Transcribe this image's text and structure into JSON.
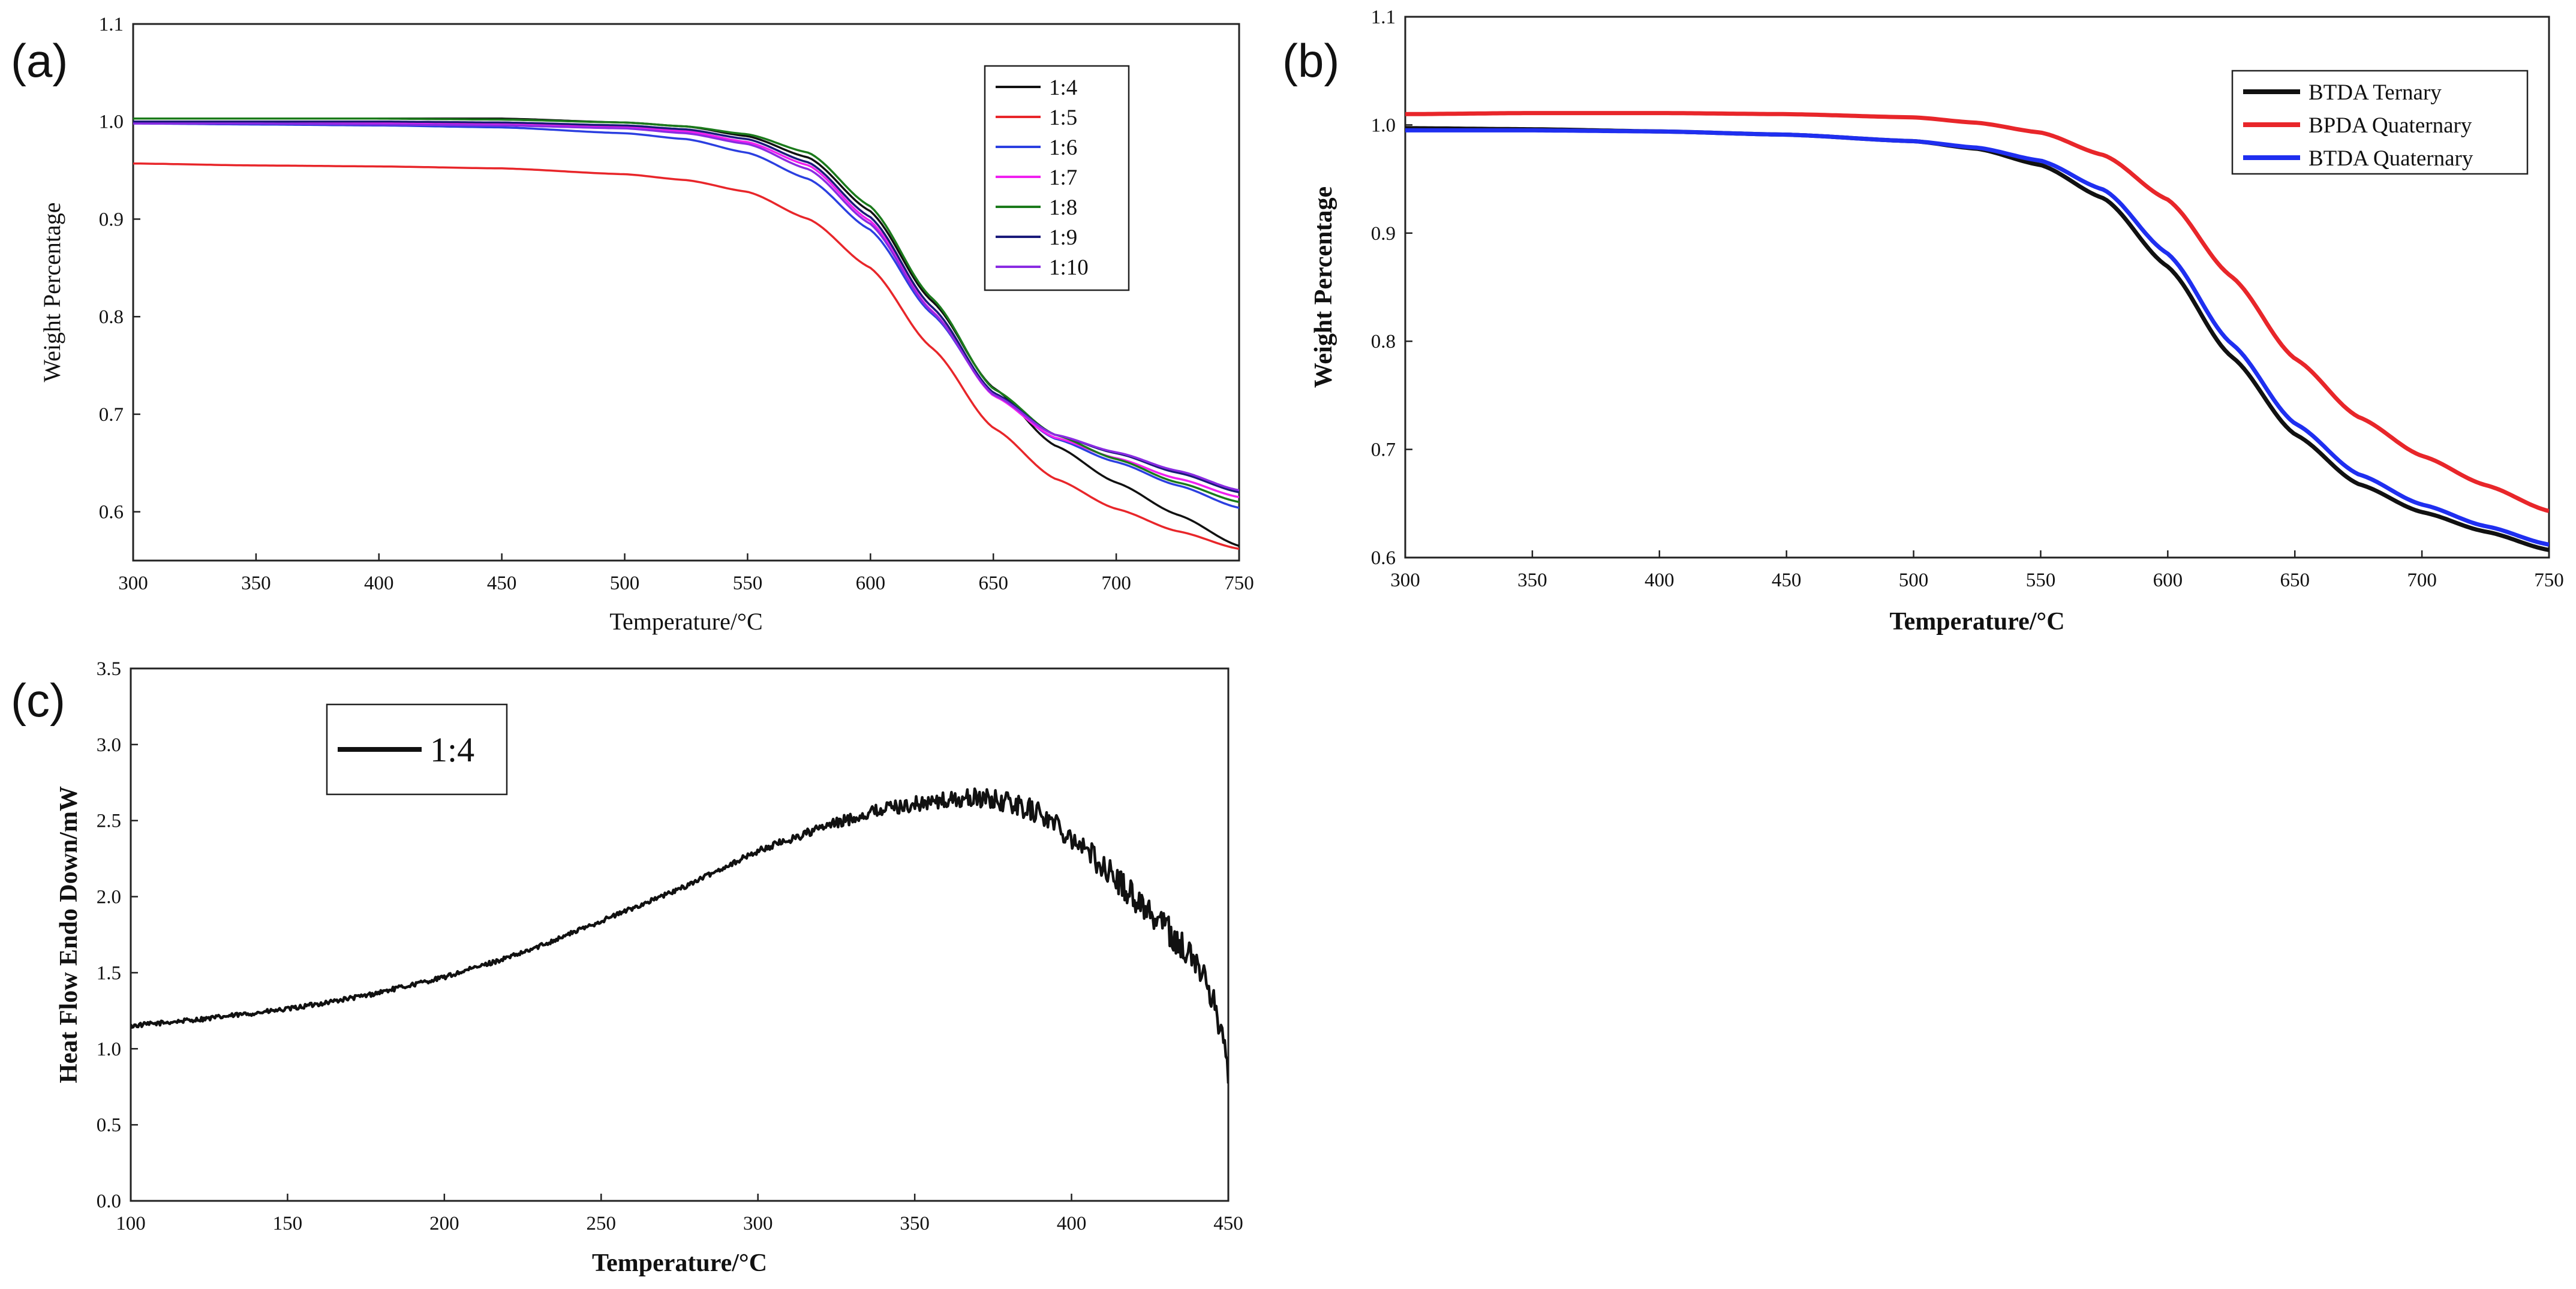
{
  "chart_data": [
    {
      "panel": "(a)",
      "type": "line",
      "title": "",
      "xlabel": "Temperature/°C",
      "ylabel": "Weight Percentage",
      "xlim": [
        300,
        750
      ],
      "ylim": [
        0.55,
        1.1
      ],
      "xticks": [
        300,
        350,
        400,
        450,
        500,
        550,
        600,
        650,
        700,
        750
      ],
      "yticks": [
        0.6,
        0.7,
        0.8,
        0.9,
        1.0,
        1.1
      ],
      "ytick_labels": [
        "0.6",
        "0.7",
        "0.8",
        "0.9",
        "1.0",
        "1.1"
      ],
      "legend": "top-right",
      "series": [
        {
          "name": "1:4",
          "color": "#111111",
          "x": [
            300,
            350,
            400,
            450,
            500,
            525,
            550,
            575,
            600,
            625,
            650,
            675,
            700,
            725,
            750
          ],
          "y": [
            1.003,
            1.003,
            1.003,
            1.003,
            0.999,
            0.995,
            0.985,
            0.963,
            0.908,
            0.816,
            0.727,
            0.668,
            0.63,
            0.597,
            0.565
          ]
        },
        {
          "name": "1:5",
          "color": "#e8262a",
          "x": [
            300,
            350,
            400,
            450,
            500,
            525,
            550,
            575,
            600,
            625,
            650,
            675,
            700,
            725,
            750
          ],
          "y": [
            0.957,
            0.955,
            0.954,
            0.952,
            0.946,
            0.94,
            0.928,
            0.9,
            0.85,
            0.768,
            0.686,
            0.634,
            0.603,
            0.58,
            0.562
          ]
        },
        {
          "name": "1:6",
          "color": "#2b3fe0",
          "x": [
            300,
            350,
            400,
            450,
            500,
            525,
            550,
            575,
            600,
            625,
            650,
            675,
            700,
            725,
            750
          ],
          "y": [
            0.998,
            0.997,
            0.996,
            0.994,
            0.988,
            0.982,
            0.968,
            0.941,
            0.889,
            0.803,
            0.721,
            0.675,
            0.651,
            0.627,
            0.604
          ]
        },
        {
          "name": "1:7",
          "color": "#f020f0",
          "x": [
            300,
            350,
            400,
            450,
            500,
            525,
            550,
            575,
            600,
            625,
            650,
            675,
            700,
            725,
            750
          ],
          "y": [
            1.0,
            1.0,
            0.999,
            0.998,
            0.995,
            0.99,
            0.979,
            0.955,
            0.898,
            0.806,
            0.719,
            0.676,
            0.655,
            0.634,
            0.615
          ]
        },
        {
          "name": "1:8",
          "color": "#1b7a1b",
          "x": [
            300,
            350,
            400,
            450,
            500,
            525,
            550,
            575,
            600,
            625,
            650,
            675,
            700,
            725,
            750
          ],
          "y": [
            1.003,
            1.003,
            1.003,
            1.002,
            0.999,
            0.995,
            0.987,
            0.968,
            0.913,
            0.819,
            0.726,
            0.679,
            0.654,
            0.63,
            0.61
          ]
        },
        {
          "name": "1:9",
          "color": "#1a1a7a",
          "x": [
            300,
            350,
            400,
            450,
            500,
            525,
            550,
            575,
            600,
            625,
            650,
            675,
            700,
            725,
            750
          ],
          "y": [
            1.0,
            1.0,
            1.0,
            0.999,
            0.996,
            0.992,
            0.982,
            0.958,
            0.902,
            0.81,
            0.722,
            0.679,
            0.66,
            0.64,
            0.62
          ]
        },
        {
          "name": "1:10",
          "color": "#8a2be2",
          "x": [
            300,
            350,
            400,
            450,
            500,
            525,
            550,
            575,
            600,
            625,
            650,
            675,
            700,
            725,
            750
          ],
          "y": [
            0.998,
            0.998,
            0.997,
            0.996,
            0.993,
            0.988,
            0.977,
            0.951,
            0.895,
            0.805,
            0.72,
            0.679,
            0.661,
            0.642,
            0.622
          ]
        }
      ]
    },
    {
      "panel": "(b)",
      "type": "line",
      "title": "",
      "xlabel": "Temperature/°C",
      "ylabel": "Weight Percentage",
      "xlim": [
        300,
        750
      ],
      "ylim": [
        0.6,
        1.1
      ],
      "xticks": [
        300,
        350,
        400,
        450,
        500,
        550,
        600,
        650,
        700,
        750
      ],
      "yticks": [
        0.6,
        0.7,
        0.8,
        0.9,
        1.0,
        1.1
      ],
      "ytick_labels": [
        "0.6",
        "0.7",
        "0.8",
        "0.9",
        "1.0",
        "1.1"
      ],
      "legend": "top-right",
      "series": [
        {
          "name": "BTDA  Ternary",
          "color": "#111111",
          "x": [
            300,
            350,
            400,
            450,
            500,
            525,
            550,
            575,
            600,
            625,
            650,
            675,
            700,
            725,
            750
          ],
          "y": [
            0.997,
            0.996,
            0.994,
            0.991,
            0.985,
            0.978,
            0.963,
            0.932,
            0.869,
            0.786,
            0.714,
            0.668,
            0.642,
            0.624,
            0.607
          ]
        },
        {
          "name": "BPDA Quaternary",
          "color": "#e8262a",
          "x": [
            300,
            350,
            400,
            450,
            500,
            525,
            550,
            575,
            600,
            625,
            650,
            675,
            700,
            725,
            750
          ],
          "y": [
            1.01,
            1.011,
            1.011,
            1.01,
            1.007,
            1.002,
            0.993,
            0.972,
            0.931,
            0.86,
            0.784,
            0.73,
            0.694,
            0.667,
            0.643
          ]
        },
        {
          "name": "BTDA Quaternary",
          "color": "#1f2ff0",
          "x": [
            300,
            350,
            400,
            450,
            500,
            525,
            550,
            575,
            600,
            625,
            650,
            675,
            700,
            725,
            750
          ],
          "y": [
            0.995,
            0.995,
            0.994,
            0.991,
            0.985,
            0.979,
            0.967,
            0.94,
            0.881,
            0.798,
            0.724,
            0.677,
            0.649,
            0.629,
            0.612
          ]
        }
      ]
    },
    {
      "panel": "(c)",
      "type": "line",
      "title": "",
      "xlabel": "Temperature/°C",
      "ylabel": "Heat Flow Endo Down/mW",
      "xlim": [
        100,
        450
      ],
      "ylim": [
        0,
        3.5
      ],
      "xticks": [
        100,
        150,
        200,
        250,
        300,
        350,
        400,
        450
      ],
      "yticks": [
        0,
        0.5,
        1.0,
        1.5,
        2.0,
        2.5,
        3.0,
        3.5
      ],
      "ytick_labels": [
        "0.0",
        "0.5",
        "1.0",
        "1.5",
        "2.0",
        "2.5",
        "3.0",
        "3.5"
      ],
      "legend": "top-left",
      "noisy": true,
      "series": [
        {
          "name": "1:4",
          "color": "#111111",
          "x": [
            100,
            125,
            150,
            175,
            200,
            225,
            250,
            275,
            300,
            320,
            340,
            355,
            370,
            380,
            390,
            400,
            410,
            420,
            430,
            440,
            445,
            448,
            450
          ],
          "y": [
            1.15,
            1.2,
            1.26,
            1.35,
            1.47,
            1.63,
            1.84,
            2.05,
            2.3,
            2.45,
            2.58,
            2.62,
            2.65,
            2.62,
            2.55,
            2.4,
            2.2,
            2.0,
            1.8,
            1.55,
            1.35,
            1.1,
            0.85
          ]
        }
      ]
    }
  ]
}
